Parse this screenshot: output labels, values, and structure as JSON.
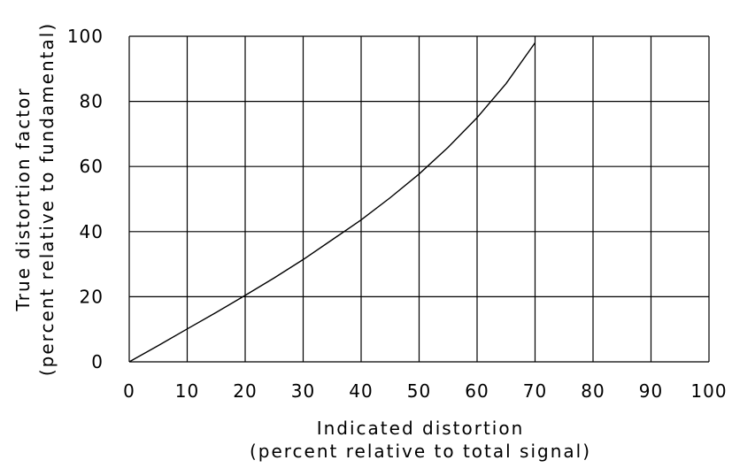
{
  "chart_data": {
    "type": "line",
    "title": "",
    "xlabel": [
      "Indicated distortion",
      "(percent relative to total signal)"
    ],
    "ylabel": [
      "True distortion factor",
      "(percent relative to fundamental)"
    ],
    "xlim": [
      0,
      100
    ],
    "ylim": [
      0,
      100
    ],
    "x_ticks": [
      0,
      10,
      20,
      30,
      40,
      50,
      60,
      70,
      80,
      90,
      100
    ],
    "y_ticks": [
      0,
      20,
      40,
      60,
      80,
      100
    ],
    "grid": true,
    "legend": "none",
    "series": [
      {
        "x": [
          0,
          5,
          10,
          15,
          20,
          25,
          30,
          35,
          40,
          45,
          50,
          55,
          60,
          65,
          70
        ],
        "y": [
          0,
          5.0,
          10.1,
          15.2,
          20.4,
          25.8,
          31.4,
          37.5,
          43.6,
          50.4,
          57.7,
          65.9,
          75.0,
          85.5,
          98.0
        ]
      }
    ],
    "colors": {
      "grid": "#000000",
      "curve": "#000000",
      "text": "#000000"
    }
  }
}
